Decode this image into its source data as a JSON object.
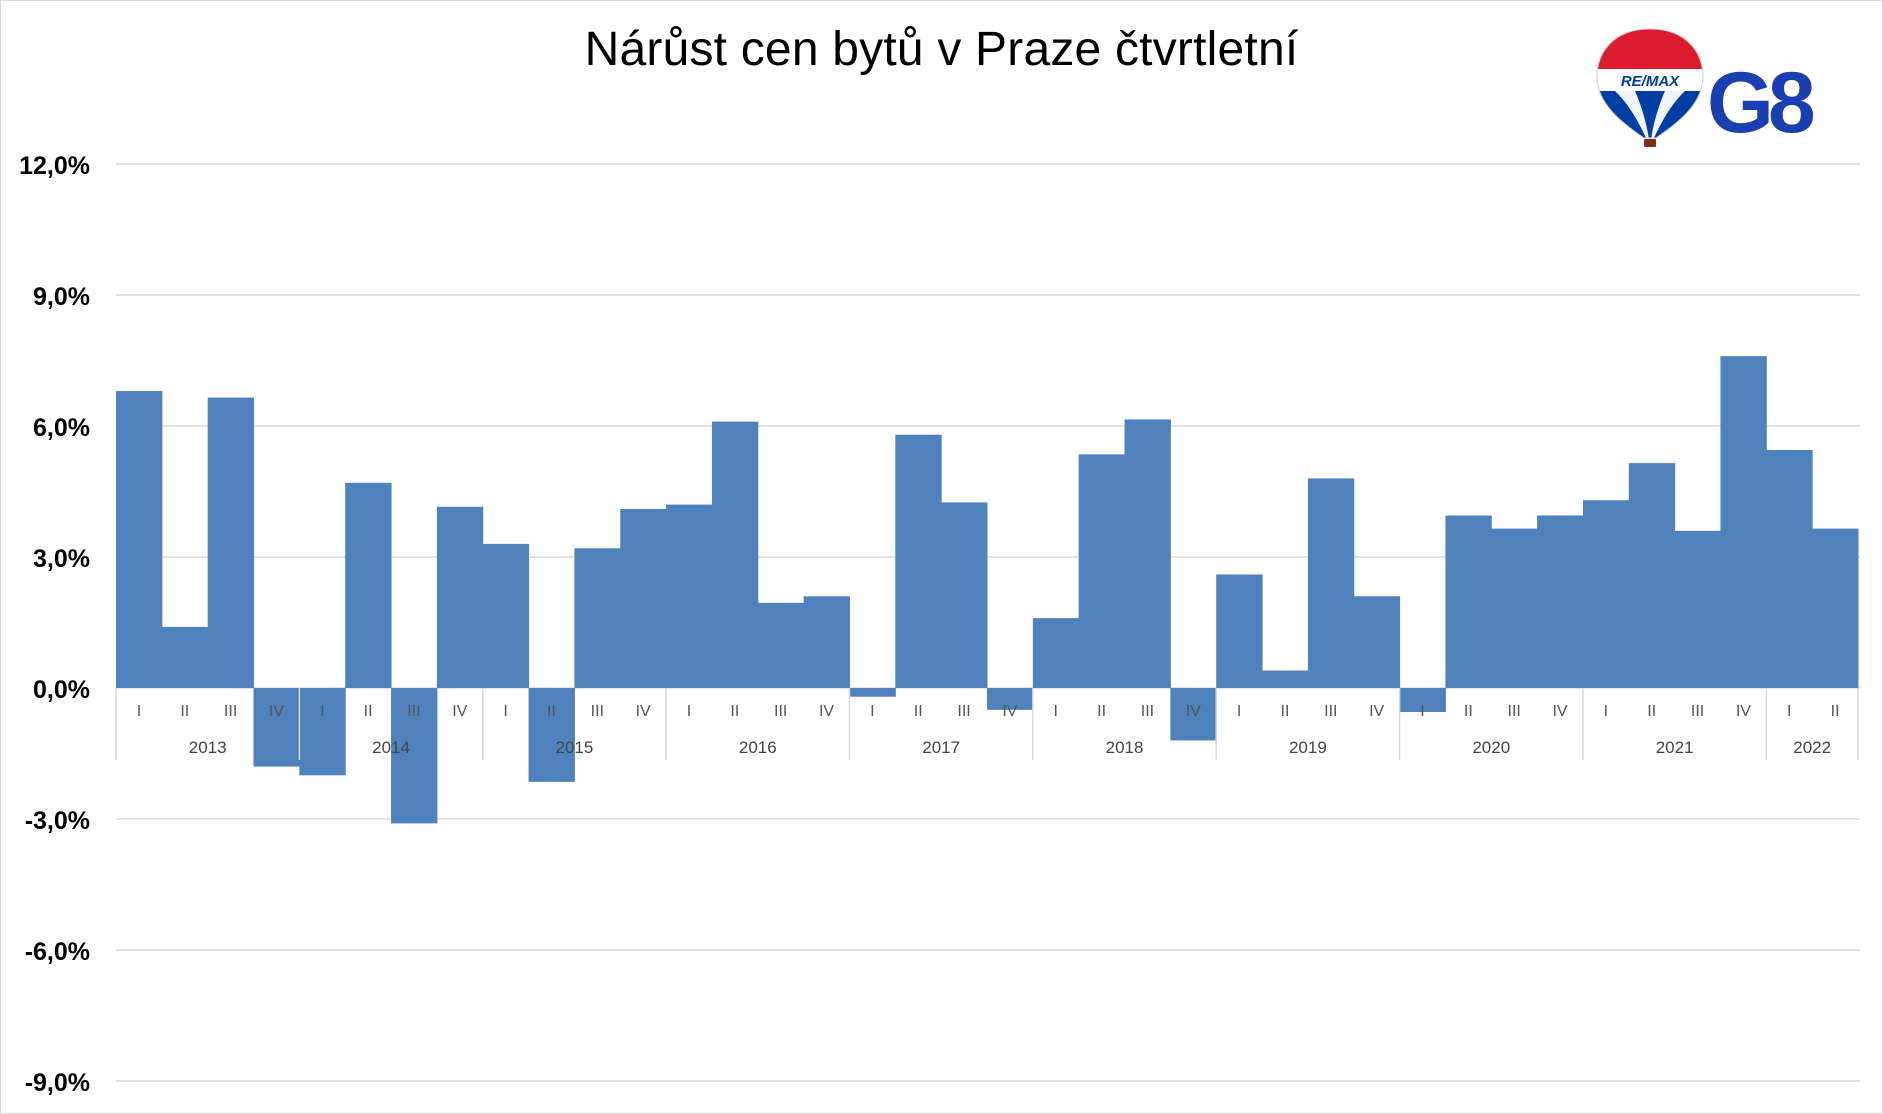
{
  "chart_data": {
    "type": "bar",
    "title": "Nárůst cen bytů v Praze čtvrtletní",
    "xlabel": "",
    "ylabel": "",
    "ylim": [
      -9,
      12
    ],
    "yticks": [
      12,
      9,
      6,
      3,
      0,
      -3,
      -6,
      -9
    ],
    "ytick_labels": [
      "12,0%",
      "9,0%",
      "6,0%",
      "3,0%",
      "0,0%",
      "-3,0%",
      "-6,0%",
      "-9,0%"
    ],
    "grid": true,
    "legend": "none",
    "bar_color": "#4f81bd",
    "quarters": [
      "I",
      "II",
      "III",
      "IV",
      "I",
      "II",
      "III",
      "IV",
      "I",
      "II",
      "III",
      "IV",
      "I",
      "II",
      "III",
      "IV",
      "I",
      "II",
      "III",
      "IV",
      "I",
      "II",
      "III",
      "IV",
      "I",
      "II",
      "III",
      "IV",
      "I",
      "II",
      "III",
      "IV",
      "I",
      "II",
      "III",
      "IV",
      "I",
      "II"
    ],
    "years": [
      {
        "label": "2013",
        "quarters": 4
      },
      {
        "label": "2014",
        "quarters": 4
      },
      {
        "label": "2015",
        "quarters": 4
      },
      {
        "label": "2016",
        "quarters": 4
      },
      {
        "label": "2017",
        "quarters": 4
      },
      {
        "label": "2018",
        "quarters": 4
      },
      {
        "label": "2019",
        "quarters": 4
      },
      {
        "label": "2020",
        "quarters": 4
      },
      {
        "label": "2021",
        "quarters": 4
      },
      {
        "label": "2022",
        "quarters": 2
      }
    ],
    "values": [
      6.8,
      1.4,
      6.65,
      -1.8,
      -2.0,
      4.7,
      -3.1,
      4.15,
      3.3,
      -2.15,
      3.2,
      4.1,
      4.2,
      6.1,
      1.95,
      2.1,
      -0.2,
      5.8,
      4.25,
      -0.5,
      1.6,
      5.35,
      6.15,
      -1.2,
      2.6,
      0.4,
      4.8,
      2.1,
      -0.55,
      3.95,
      3.65,
      3.95,
      4.3,
      5.15,
      3.6,
      7.6,
      5.45,
      3.65
    ]
  },
  "logo": {
    "balloon_text": "RE/MAX",
    "brand_text": "G8",
    "brand_color": "#1a3fb0",
    "red": "#dc1c2e",
    "blue": "#003da5"
  }
}
